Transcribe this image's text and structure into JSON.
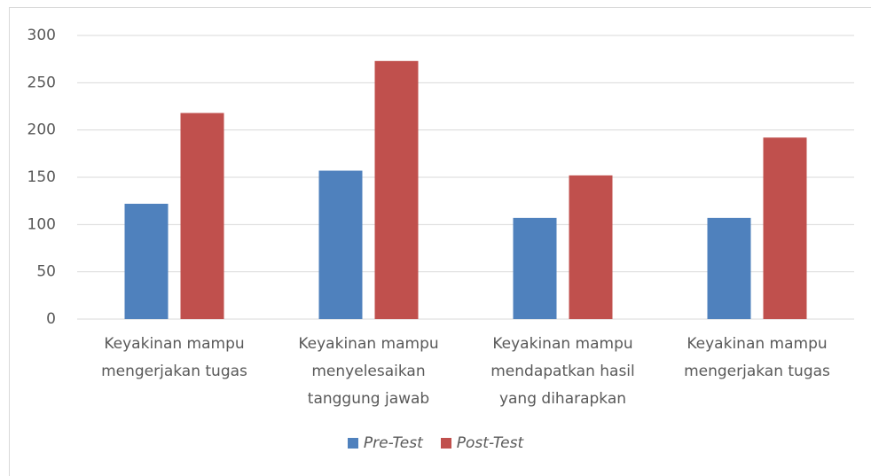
{
  "chart_data": {
    "type": "bar",
    "categories": [
      "Keyakinan mampu mengerjakan tugas",
      "Keyakinan mampu menyelesaikan tanggung jawab",
      "Keyakinan mampu mendapatkan hasil yang diharapkan",
      "Keyakinan mampu mengerjakan tugas"
    ],
    "series": [
      {
        "name": "Pre-Test",
        "color": "#4f81bd",
        "values": [
          122,
          157,
          107,
          107
        ]
      },
      {
        "name": "Post-Test",
        "color": "#c0504d",
        "values": [
          218,
          273,
          152,
          192
        ]
      }
    ],
    "ylim": [
      0,
      300
    ],
    "yticks": [
      0,
      50,
      100,
      150,
      200,
      250,
      300
    ],
    "grid": true,
    "legend": "bottom"
  }
}
